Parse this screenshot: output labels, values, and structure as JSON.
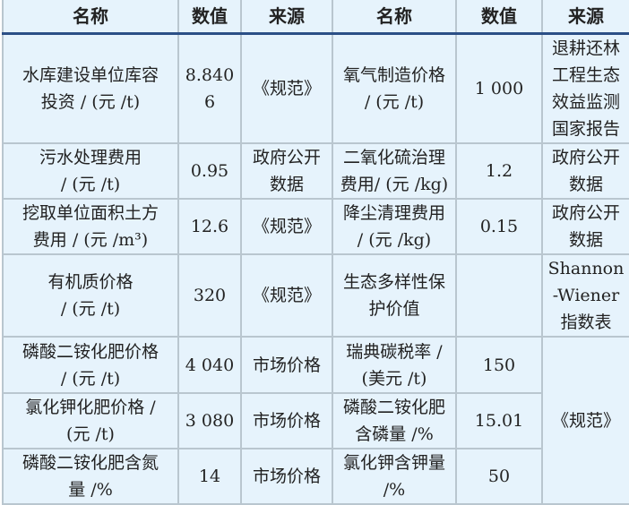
{
  "header": [
    "名称",
    "数值",
    "来源",
    "名称",
    "数值",
    "来源"
  ],
  "rows": [
    [
      "水库建设单位库容\n投资 / (元 /t)",
      "8.840 6",
      "《规范》",
      "氧气制造价格\n/ (元 /t)",
      "1 000",
      "退耕还林\n工程生态\n效益监测\n国家报告"
    ],
    [
      "污水处理费用\n/ (元 /t)",
      "0.95",
      "政府公开\n数据",
      "二氧化硫治理\n费用/ (元 /kg)",
      "1.2",
      "政府公开\n数据"
    ],
    [
      "挖取单位面积土方\n费用 / (元 /m³)",
      "12.6",
      "《规范》",
      "降尘清理费用\n/ (元 /kg)",
      "0.15",
      "政府公开\n数据"
    ],
    [
      "有机质价格\n/ (元 /t)",
      "320",
      "《规范》",
      "生态多样性保\n护价值",
      "",
      "Shannon\n-Wiener\n指数表"
    ],
    [
      "磷酸二铵化肥价格\n/ (元 /t)",
      "4 040",
      "市场价格",
      "瑞典碳税率 /\n(美元 /t)",
      "150",
      "《规范》"
    ],
    [
      "氯化钾化肥价格 /\n(元 /t)",
      "3 080",
      "市场价格",
      "磷酸二铵化肥\n含磷量 /%",
      "15.01"
    ],
    [
      "磷酸二铵化肥含氮\n量 /%",
      "14",
      "市场价格",
      "氯化钾含钾量\n/%",
      "50"
    ]
  ]
}
